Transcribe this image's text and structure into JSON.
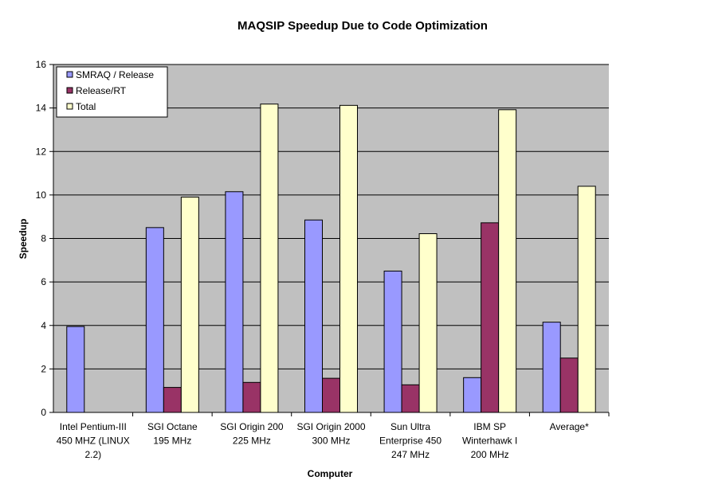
{
  "chart_data": {
    "type": "bar",
    "title": "MAQSIP Speedup Due to Code Optimization",
    "xlabel": "Computer",
    "ylabel": "Speedup",
    "ylim": [
      0,
      16
    ],
    "yticks": [
      0,
      2,
      4,
      6,
      8,
      10,
      12,
      14,
      16
    ],
    "grid": true,
    "legend_position": "top-left",
    "plot_background": "#c0c0c0",
    "categories": [
      [
        "Intel Pentium-III",
        "450 MHZ (LINUX",
        "2.2)"
      ],
      [
        "SGI Octane",
        "195 MHz"
      ],
      [
        "SGI Origin 200",
        "225 MHz"
      ],
      [
        "SGI Origin 2000",
        "300 MHz"
      ],
      [
        "Sun Ultra",
        "Enterprise 450",
        "247 MHz"
      ],
      [
        "IBM SP",
        "Winterhawk I",
        "200 MHz"
      ],
      [
        "Average*"
      ]
    ],
    "series": [
      {
        "name": "SMRAQ / Release",
        "color": "#9999ff",
        "values": [
          3.95,
          8.5,
          10.15,
          8.85,
          6.5,
          1.6,
          4.15
        ]
      },
      {
        "name": "Release/RT",
        "color": "#993366",
        "values": [
          null,
          1.15,
          1.38,
          1.57,
          1.27,
          8.72,
          2.5
        ]
      },
      {
        "name": "Total",
        "color": "#ffffcc",
        "values": [
          null,
          9.9,
          14.18,
          14.12,
          8.22,
          13.92,
          10.4
        ]
      }
    ]
  }
}
